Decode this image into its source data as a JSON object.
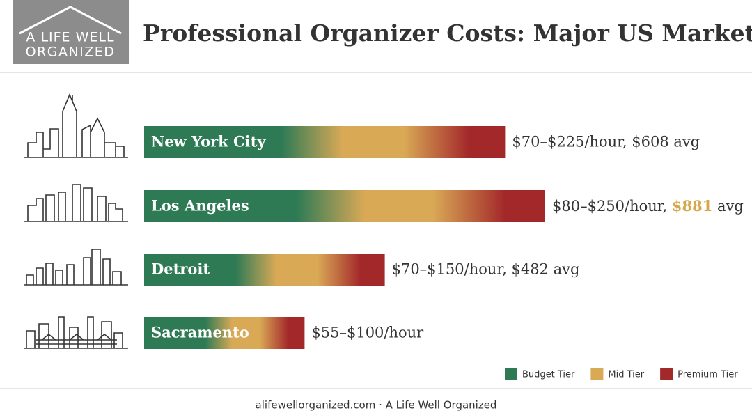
{
  "header": {
    "logo_lines": [
      "A LIFE WELL",
      "ORGANIZED"
    ]
  },
  "chart_data": {
    "type": "bar",
    "orientation": "horizontal",
    "title": "Professional Organizer Costs: Major US Markets",
    "categories": [
      "New York City",
      "Los Angeles",
      "Detroit",
      "Sacramento"
    ],
    "values": [
      225,
      250,
      150,
      100
    ],
    "value_labels": [
      "$70–$225/hour, $608 avg",
      "$80–$250/hour, $881 avg",
      "$70–$150/hour, $482 avg",
      "$55–$100/hour"
    ],
    "highlight": {
      "index": 1,
      "text": "$881",
      "color": "#d4a84b"
    },
    "xlim": [
      0,
      250
    ],
    "legend": [
      {
        "name": "Budget Tier",
        "color": "#2e7a55"
      },
      {
        "name": "Mid Tier",
        "color": "#d9a956"
      },
      {
        "name": "Premium Tier",
        "color": "#a3282a"
      }
    ]
  },
  "footer": {
    "text": "alifewellorganized.com · A Life Well Organized"
  }
}
